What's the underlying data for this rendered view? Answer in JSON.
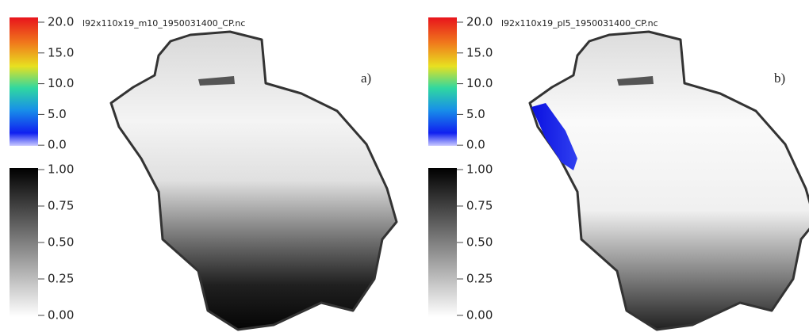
{
  "panels": [
    {
      "file": "l92x110x19_m10_1950031400_CP.nc",
      "label": "a)",
      "colorbar_top": [
        "20.0",
        "15.0",
        "10.0",
        "5.0",
        "0.0"
      ],
      "colorbar_bottom": [
        "1.00",
        "0.75",
        "0.50",
        "0.25",
        "0.00"
      ]
    },
    {
      "file": "l92x110x19_pl5_1950031400_CP.nc",
      "label": "b)",
      "colorbar_top": [
        "20.0",
        "15.0",
        "10.0",
        "5.0",
        "0.0"
      ],
      "colorbar_bottom": [
        "1.00",
        "0.75",
        "0.50",
        "0.25",
        "0.00"
      ]
    }
  ]
}
